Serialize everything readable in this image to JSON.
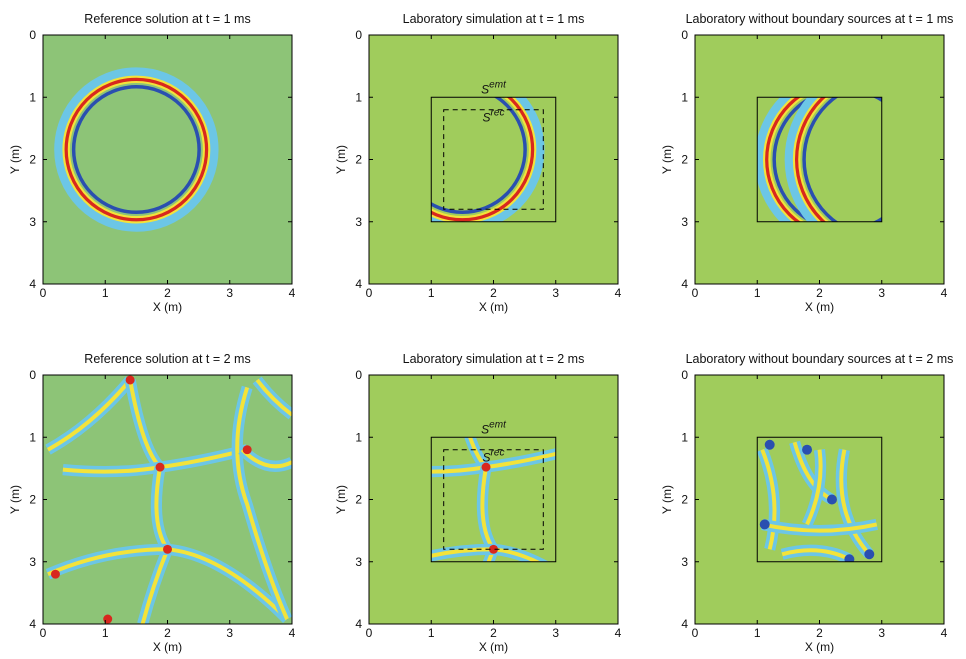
{
  "chart_data": [
    {
      "type": "image",
      "title": "Reference solution at t = 1 ms",
      "xlabel": "X (m)",
      "ylabel": "Y (m)",
      "xlim": [
        0,
        4
      ],
      "ylim": [
        0,
        4
      ],
      "y_inverted": true,
      "xticks": [
        0,
        1,
        2,
        3,
        4
      ],
      "yticks": [
        0,
        1,
        2,
        3,
        4
      ],
      "background": "#8dc477"
    },
    {
      "type": "image",
      "title": "Laboratory simulation at t = 1 ms",
      "xlabel": "X (m)",
      "ylabel": "Y (m)",
      "xlim": [
        0,
        4
      ],
      "ylim": [
        0,
        4
      ],
      "y_inverted": true,
      "xticks": [
        0,
        1,
        2,
        3,
        4
      ],
      "yticks": [
        0,
        1,
        2,
        3,
        4
      ],
      "background": "#a0cc5c",
      "surfaces": [
        {
          "name": "S",
          "superscript": "emt",
          "x0": 1,
          "x1": 3,
          "y0": 1,
          "y1": 3,
          "style": "solid"
        },
        {
          "name": "S",
          "superscript": "rec",
          "x0": 1.2,
          "x1": 2.8,
          "y0": 1.2,
          "y1": 2.8,
          "style": "dashed"
        }
      ]
    },
    {
      "type": "image",
      "title": "Laboratory without boundary sources at t = 1 ms",
      "xlabel": "X (m)",
      "ylabel": "Y (m)",
      "xlim": [
        0,
        4
      ],
      "ylim": [
        0,
        4
      ],
      "y_inverted": true,
      "xticks": [
        0,
        1,
        2,
        3,
        4
      ],
      "yticks": [
        0,
        1,
        2,
        3,
        4
      ],
      "background": "#a0cc5c",
      "surfaces": [
        {
          "x0": 1,
          "x1": 3,
          "y0": 1,
          "y1": 3,
          "style": "solid"
        }
      ]
    },
    {
      "type": "image",
      "title": "Reference solution at t = 2 ms",
      "xlabel": "X (m)",
      "ylabel": "Y (m)",
      "xlim": [
        0,
        4
      ],
      "ylim": [
        0,
        4
      ],
      "y_inverted": true,
      "xticks": [
        0,
        1,
        2,
        3,
        4
      ],
      "yticks": [
        0,
        1,
        2,
        3,
        4
      ],
      "background": "#8dc477"
    },
    {
      "type": "image",
      "title": "Laboratory simulation at t = 2 ms",
      "xlabel": "X (m)",
      "ylabel": "Y (m)",
      "xlim": [
        0,
        4
      ],
      "ylim": [
        0,
        4
      ],
      "y_inverted": true,
      "xticks": [
        0,
        1,
        2,
        3,
        4
      ],
      "yticks": [
        0,
        1,
        2,
        3,
        4
      ],
      "background": "#a0cc5c",
      "surfaces": [
        {
          "name": "S",
          "superscript": "emt",
          "x0": 1,
          "x1": 3,
          "y0": 1,
          "y1": 3,
          "style": "solid"
        },
        {
          "name": "S",
          "superscript": "rec",
          "x0": 1.2,
          "x1": 2.8,
          "y0": 1.2,
          "y1": 2.8,
          "style": "dashed"
        }
      ]
    },
    {
      "type": "image",
      "title": "Laboratory without boundary sources at t = 2 ms",
      "xlabel": "X (m)",
      "ylabel": "Y (m)",
      "xlim": [
        0,
        4
      ],
      "ylim": [
        0,
        4
      ],
      "y_inverted": true,
      "xticks": [
        0,
        1,
        2,
        3,
        4
      ],
      "yticks": [
        0,
        1,
        2,
        3,
        4
      ],
      "background": "#a0cc5c",
      "surfaces": [
        {
          "x0": 1,
          "x1": 3,
          "y0": 1,
          "y1": 3,
          "style": "solid"
        }
      ]
    }
  ]
}
